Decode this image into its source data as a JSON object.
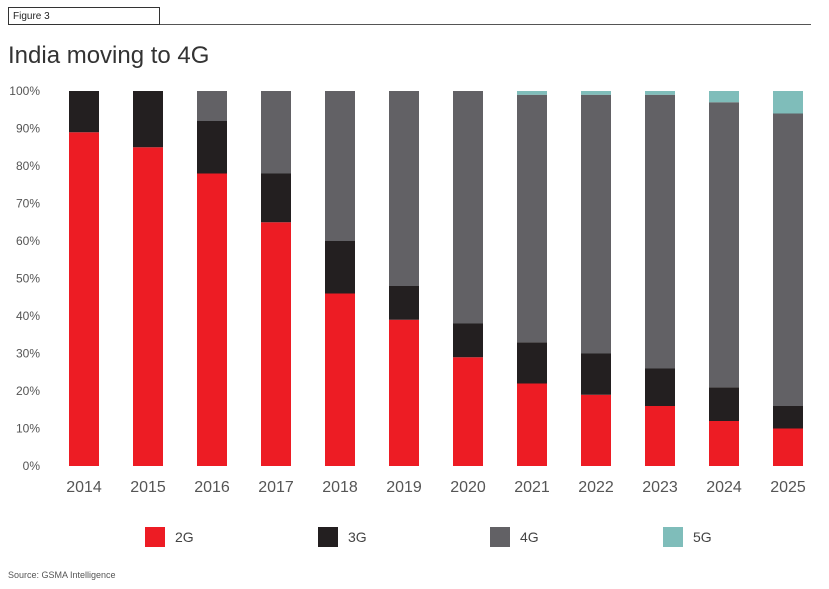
{
  "figure_label": "Figure 3",
  "title": "India moving to 4G",
  "source": "Source: GSMA Intelligence",
  "colors": {
    "2G": "#ed1c24",
    "3G": "#231f20",
    "4G": "#626165",
    "5G": "#7fbdba"
  },
  "chart_data": {
    "type": "bar",
    "stacked": true,
    "title": "India moving to 4G",
    "xlabel": "",
    "ylabel": "",
    "ylim": [
      0,
      100
    ],
    "y_ticks": [
      "0%",
      "10%",
      "20%",
      "30%",
      "40%",
      "50%",
      "60%",
      "70%",
      "80%",
      "90%",
      "100%"
    ],
    "categories": [
      "2014",
      "2015",
      "2016",
      "2017",
      "2018",
      "2019",
      "2020",
      "2021",
      "2022",
      "2023",
      "2024",
      "2025"
    ],
    "series": [
      {
        "name": "2G",
        "values": [
          89,
          85,
          78,
          65,
          46,
          39,
          29,
          22,
          19,
          16,
          12,
          10
        ]
      },
      {
        "name": "3G",
        "values": [
          11,
          15,
          14,
          13,
          14,
          9,
          9,
          11,
          11,
          10,
          9,
          6
        ]
      },
      {
        "name": "4G",
        "values": [
          0,
          0,
          8,
          22,
          40,
          52,
          62,
          66,
          69,
          73,
          76,
          78
        ]
      },
      {
        "name": "5G",
        "values": [
          0,
          0,
          0,
          0,
          0,
          0,
          0,
          1,
          1,
          1,
          3,
          6
        ]
      }
    ],
    "legend_position": "bottom",
    "grid": false
  }
}
